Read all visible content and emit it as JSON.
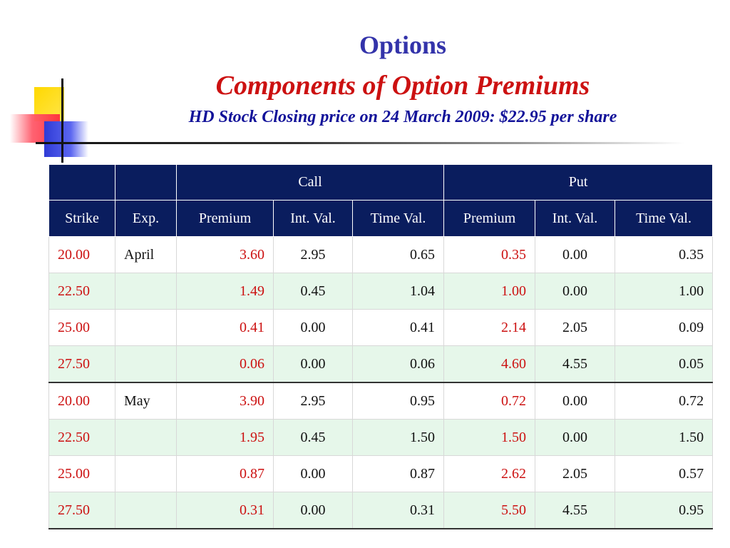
{
  "title": "Options",
  "subtitle": "Components of Option Premiums",
  "subtitle2": "HD Stock Closing price on 24 March 2009: $22.95 per share",
  "table": {
    "groups": [
      "",
      "",
      "Call",
      "Put"
    ],
    "columns": [
      "Strike",
      "Exp.",
      "Premium",
      "Int. Val.",
      "Time Val.",
      "Premium",
      "Int. Val.",
      "Time Val."
    ],
    "rows": [
      [
        "20.00",
        "April",
        "3.60",
        "2.95",
        "0.65",
        "0.35",
        "0.00",
        "0.35"
      ],
      [
        "22.50",
        "",
        "1.49",
        "0.45",
        "1.04",
        "1.00",
        "0.00",
        "1.00"
      ],
      [
        "25.00",
        "",
        "0.41",
        "0.00",
        "0.41",
        "2.14",
        "2.05",
        "0.09"
      ],
      [
        "27.50",
        "",
        "0.06",
        "0.00",
        "0.06",
        "4.60",
        "4.55",
        "0.05"
      ],
      [
        "20.00",
        "May",
        "3.90",
        "2.95",
        "0.95",
        "0.72",
        "0.00",
        "0.72"
      ],
      [
        "22.50",
        "",
        "1.95",
        "0.45",
        "1.50",
        "1.50",
        "0.00",
        "1.50"
      ],
      [
        "25.00",
        "",
        "0.87",
        "0.00",
        "0.87",
        "2.62",
        "2.05",
        "0.57"
      ],
      [
        "27.50",
        "",
        "0.31",
        "0.00",
        "0.31",
        "5.50",
        "4.55",
        "0.95"
      ]
    ]
  },
  "colors": {
    "title": "#3333aa",
    "subtitle": "#cc1111",
    "subtitle2": "#111199",
    "header_bg": "#0a1d5e",
    "row_alt": "#e6f7ea"
  }
}
